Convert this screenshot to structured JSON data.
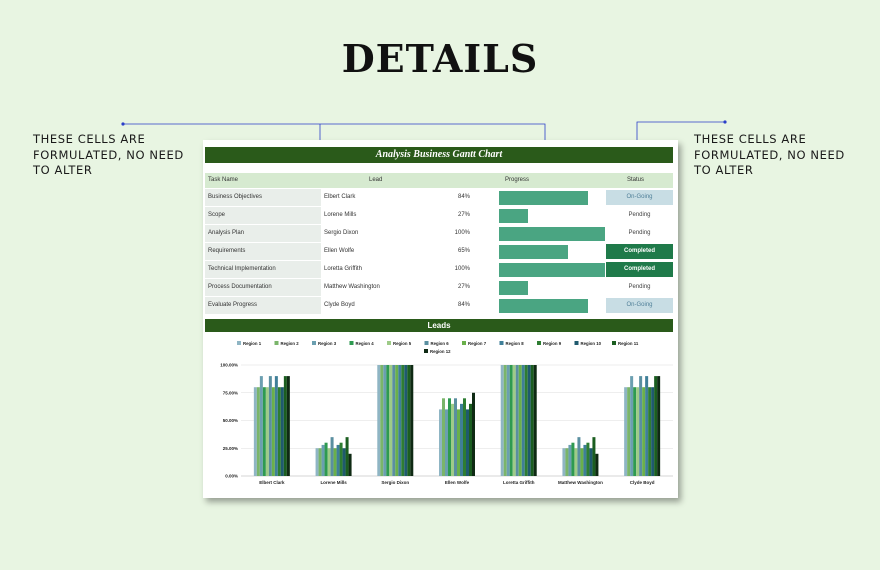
{
  "title": "DETAILS",
  "notes": {
    "left": "THESE CELLS ARE FORMULATED, NO NEED TO ALTER",
    "right": "THESE CELLS ARE FORMULATED, NO NEED TO ALTER"
  },
  "gantt": {
    "title": "Analysis Business Gantt Chart",
    "headers": {
      "task": "Task Name",
      "lead": "Lead",
      "progress": "Progress",
      "status": "Status"
    },
    "rows": [
      {
        "task": "Business Objectives",
        "lead": "Elbert Clark",
        "pct_label": "84%",
        "progress": 0.84,
        "status": "On-Going",
        "status_type": "ongoing"
      },
      {
        "task": "Scope",
        "lead": "Lorene Mills",
        "pct_label": "27%",
        "progress": 0.27,
        "status": "Pending",
        "status_type": "pending"
      },
      {
        "task": "Analysis Plan",
        "lead": "Sergio Dixon",
        "pct_label": "100%",
        "progress": 1.0,
        "status": "Pending",
        "status_type": "pending"
      },
      {
        "task": "Requirements",
        "lead": "Ellen Wolfe",
        "pct_label": "65%",
        "progress": 0.65,
        "status": "Completed",
        "status_type": "completed"
      },
      {
        "task": "Technical Implementation",
        "lead": "Loretta Griffith",
        "pct_label": "100%",
        "progress": 1.0,
        "status": "Completed",
        "status_type": "completed"
      },
      {
        "task": "Process Documentation",
        "lead": "Matthew Washington",
        "pct_label": "27%",
        "progress": 0.27,
        "status": "Pending",
        "status_type": "pending"
      },
      {
        "task": "Evaluate Progress",
        "lead": "Clyde Boyd",
        "pct_label": "84%",
        "progress": 0.84,
        "status": "On-Going",
        "status_type": "ongoing"
      }
    ]
  },
  "leads": {
    "title": "Leads"
  },
  "chart_data": {
    "type": "bar",
    "categories": [
      "Elbert Clark",
      "Lorene Mills",
      "Sergio Dixon",
      "Ellen Wolfe",
      "Loretta Griffith",
      "Matthew Washington",
      "Clyde Boyd"
    ],
    "yticks": [
      "100.00%",
      "75.00%",
      "50.00%",
      "25.00%",
      "0.00%"
    ],
    "ylim": [
      0,
      100
    ],
    "grid": true,
    "legend_position": "top",
    "series": [
      {
        "name": "Region 1",
        "color": "#8fb5c4",
        "values": [
          80,
          25,
          100,
          60,
          100,
          25,
          80
        ]
      },
      {
        "name": "Region 2",
        "color": "#7ab56a",
        "values": [
          80,
          25,
          100,
          70,
          100,
          25,
          80
        ]
      },
      {
        "name": "Region 3",
        "color": "#6b9fb0",
        "values": [
          90,
          28,
          100,
          60,
          100,
          28,
          90
        ]
      },
      {
        "name": "Region 4",
        "color": "#2e9a50",
        "values": [
          80,
          30,
          100,
          70,
          100,
          30,
          80
        ]
      },
      {
        "name": "Region 5",
        "color": "#9ecb88",
        "values": [
          80,
          25,
          100,
          65,
          100,
          25,
          80
        ]
      },
      {
        "name": "Region 6",
        "color": "#5a8fa0",
        "values": [
          90,
          35,
          100,
          70,
          100,
          35,
          90
        ]
      },
      {
        "name": "Region 7",
        "color": "#6ab04a",
        "values": [
          80,
          25,
          100,
          60,
          100,
          25,
          80
        ]
      },
      {
        "name": "Region 8",
        "color": "#3f7f98",
        "values": [
          90,
          28,
          100,
          65,
          100,
          28,
          90
        ]
      },
      {
        "name": "Region 9",
        "color": "#2e7d32",
        "values": [
          80,
          30,
          100,
          70,
          100,
          30,
          80
        ]
      },
      {
        "name": "Region 10",
        "color": "#1f5a6e",
        "values": [
          80,
          25,
          100,
          60,
          100,
          25,
          80
        ]
      },
      {
        "name": "Region 11",
        "color": "#1b5e20",
        "values": [
          90,
          35,
          100,
          65,
          100,
          35,
          90
        ]
      },
      {
        "name": "Region 12",
        "color": "#0f2a14",
        "values": [
          90,
          20,
          100,
          75,
          100,
          20,
          90
        ]
      }
    ]
  }
}
